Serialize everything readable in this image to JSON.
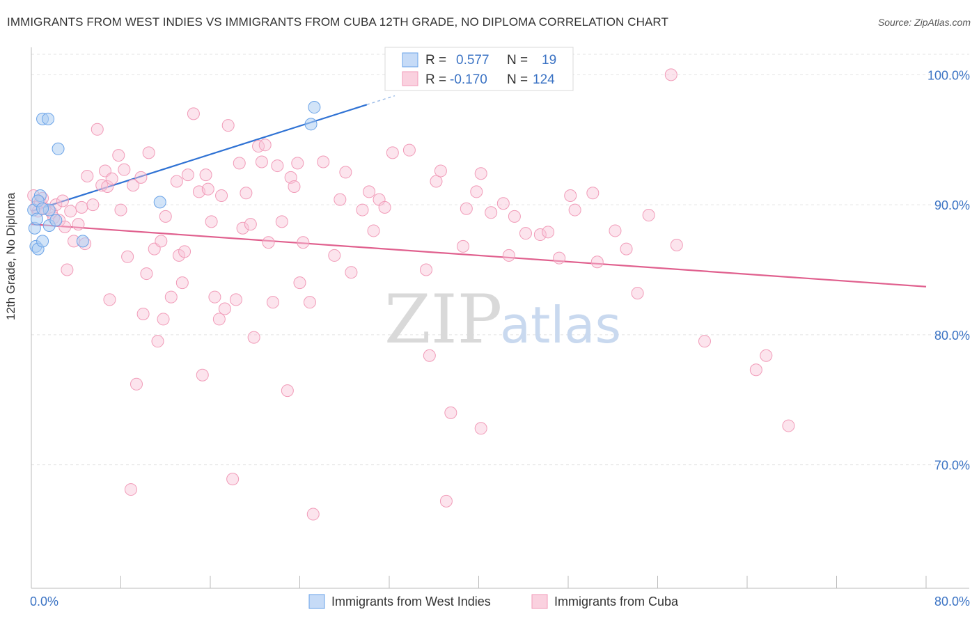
{
  "header": {
    "title": "IMMIGRANTS FROM WEST INDIES VS IMMIGRANTS FROM CUBA 12TH GRADE, NO DIPLOMA CORRELATION CHART",
    "source": "Source: ZipAtlas.com"
  },
  "watermark": {
    "part1": "ZIP",
    "part2": "atlas"
  },
  "legend_box": {
    "rows": [
      {
        "r_label": "R =",
        "r_value": "0.577",
        "n_label": "N =",
        "n_value": "19"
      },
      {
        "r_label": "R =",
        "r_value": "-0.170",
        "n_label": "N =",
        "n_value": "124"
      }
    ]
  },
  "chart_data": {
    "type": "scatter",
    "title": "IMMIGRANTS FROM WEST INDIES VS IMMIGRANTS FROM CUBA 12TH GRADE, NO DIPLOMA CORRELATION CHART",
    "ylabel": "12th Grade, No Diploma",
    "xlabel": "",
    "xlim": [
      0,
      80
    ],
    "ylim": [
      60.5,
      102
    ],
    "x_tick_labels": [
      "0.0%",
      "80.0%"
    ],
    "y_ticks": [
      {
        "value": 100,
        "label": "100.0%"
      },
      {
        "value": 90,
        "label": "90.0%"
      },
      {
        "value": 80,
        "label": "80.0%"
      },
      {
        "value": 70,
        "label": "70.0%"
      }
    ],
    "grid": true,
    "legend_position": "bottom",
    "colors": {
      "west_indies": "#6aa3e8",
      "cuba": "#f19bb8",
      "west_indies_line": "#2f72d4",
      "cuba_line": "#e0608e",
      "tick_label": "#3b73c4"
    },
    "series": [
      {
        "name": "Immigrants from West Indies",
        "R": 0.577,
        "N": 19,
        "trend": {
          "x": [
            0.0,
            30.0
          ],
          "y": [
            89.5,
            97.7
          ]
        },
        "points": [
          [
            0.2,
            89.6
          ],
          [
            0.3,
            88.2
          ],
          [
            0.4,
            86.8
          ],
          [
            0.5,
            88.9
          ],
          [
            0.6,
            86.6
          ],
          [
            0.8,
            90.7
          ],
          [
            1.0,
            87.2
          ],
          [
            1.0,
            96.6
          ],
          [
            1.5,
            96.6
          ],
          [
            1.6,
            89.6
          ],
          [
            1.6,
            88.4
          ],
          [
            2.2,
            88.8
          ],
          [
            2.4,
            94.3
          ],
          [
            4.6,
            87.2
          ],
          [
            11.5,
            90.2
          ],
          [
            25.0,
            96.2
          ],
          [
            25.3,
            97.5
          ],
          [
            0.6,
            90.3
          ],
          [
            1.0,
            89.7
          ]
        ]
      },
      {
        "name": "Immigrants from Cuba",
        "R": -0.17,
        "N": 124,
        "trend": {
          "x": [
            0.0,
            80.0
          ],
          "y": [
            88.5,
            83.7
          ]
        },
        "points": [
          [
            0.2,
            90.7
          ],
          [
            0.4,
            89.8
          ],
          [
            0.8,
            90.2
          ],
          [
            1.0,
            90.5
          ],
          [
            1.2,
            89.7
          ],
          [
            1.8,
            89.4
          ],
          [
            2.0,
            89.0
          ],
          [
            2.2,
            90.0
          ],
          [
            2.5,
            88.8
          ],
          [
            2.8,
            90.3
          ],
          [
            3.0,
            88.3
          ],
          [
            3.2,
            85.0
          ],
          [
            3.5,
            89.5
          ],
          [
            3.8,
            87.2
          ],
          [
            4.2,
            88.5
          ],
          [
            4.5,
            89.8
          ],
          [
            4.8,
            87.0
          ],
          [
            5.0,
            92.2
          ],
          [
            5.5,
            90.0
          ],
          [
            5.9,
            95.8
          ],
          [
            6.3,
            91.5
          ],
          [
            6.6,
            92.6
          ],
          [
            6.8,
            91.4
          ],
          [
            7.0,
            82.7
          ],
          [
            7.2,
            92.0
          ],
          [
            7.8,
            93.8
          ],
          [
            8.0,
            89.6
          ],
          [
            8.3,
            92.7
          ],
          [
            8.6,
            86.0
          ],
          [
            8.9,
            68.1
          ],
          [
            9.1,
            91.5
          ],
          [
            9.4,
            76.2
          ],
          [
            9.8,
            92.1
          ],
          [
            10.0,
            81.6
          ],
          [
            10.3,
            84.7
          ],
          [
            10.5,
            94.0
          ],
          [
            11.0,
            86.6
          ],
          [
            11.3,
            79.5
          ],
          [
            11.6,
            87.2
          ],
          [
            11.8,
            81.2
          ],
          [
            12.0,
            89.1
          ],
          [
            12.5,
            82.9
          ],
          [
            13.0,
            91.8
          ],
          [
            13.2,
            86.1
          ],
          [
            13.5,
            84.0
          ],
          [
            13.7,
            86.4
          ],
          [
            14.0,
            92.3
          ],
          [
            14.5,
            97.0
          ],
          [
            15.0,
            91.0
          ],
          [
            15.3,
            76.9
          ],
          [
            15.6,
            92.3
          ],
          [
            15.8,
            91.2
          ],
          [
            16.1,
            88.7
          ],
          [
            16.4,
            82.9
          ],
          [
            16.8,
            81.2
          ],
          [
            17.0,
            90.7
          ],
          [
            17.3,
            82.0
          ],
          [
            17.6,
            96.1
          ],
          [
            18.0,
            68.9
          ],
          [
            18.3,
            82.7
          ],
          [
            18.6,
            93.2
          ],
          [
            18.9,
            88.2
          ],
          [
            19.2,
            90.9
          ],
          [
            19.6,
            88.5
          ],
          [
            19.9,
            79.8
          ],
          [
            20.3,
            94.5
          ],
          [
            20.6,
            93.3
          ],
          [
            20.9,
            94.6
          ],
          [
            21.2,
            87.1
          ],
          [
            21.6,
            82.5
          ],
          [
            22.0,
            93.0
          ],
          [
            22.4,
            88.7
          ],
          [
            22.9,
            75.7
          ],
          [
            23.2,
            92.1
          ],
          [
            23.5,
            91.4
          ],
          [
            23.8,
            93.2
          ],
          [
            24.0,
            84.0
          ],
          [
            24.3,
            87.1
          ],
          [
            24.9,
            82.5
          ],
          [
            25.2,
            66.2
          ],
          [
            26.1,
            93.3
          ],
          [
            27.1,
            86.1
          ],
          [
            27.6,
            90.4
          ],
          [
            28.1,
            92.5
          ],
          [
            28.6,
            84.8
          ],
          [
            29.6,
            89.6
          ],
          [
            30.2,
            91.0
          ],
          [
            30.6,
            88.0
          ],
          [
            31.1,
            90.4
          ],
          [
            31.6,
            89.8
          ],
          [
            32.3,
            94.0
          ],
          [
            33.8,
            94.2
          ],
          [
            35.3,
            85.0
          ],
          [
            35.6,
            78.4
          ],
          [
            36.2,
            91.8
          ],
          [
            36.6,
            92.6
          ],
          [
            37.1,
            67.2
          ],
          [
            37.5,
            74.0
          ],
          [
            38.6,
            86.8
          ],
          [
            38.9,
            89.7
          ],
          [
            39.8,
            91.0
          ],
          [
            40.2,
            92.4
          ],
          [
            40.2,
            72.8
          ],
          [
            41.1,
            89.4
          ],
          [
            42.2,
            90.1
          ],
          [
            42.7,
            86.1
          ],
          [
            43.2,
            89.1
          ],
          [
            44.2,
            87.8
          ],
          [
            45.5,
            87.7
          ],
          [
            46.2,
            87.9
          ],
          [
            47.2,
            85.9
          ],
          [
            48.2,
            90.7
          ],
          [
            48.6,
            89.6
          ],
          [
            50.2,
            90.9
          ],
          [
            50.6,
            85.6
          ],
          [
            52.2,
            88.0
          ],
          [
            53.2,
            86.6
          ],
          [
            54.2,
            83.2
          ],
          [
            55.2,
            89.2
          ],
          [
            57.2,
            100.0
          ],
          [
            57.7,
            86.9
          ],
          [
            60.2,
            79.5
          ],
          [
            64.8,
            77.3
          ],
          [
            65.7,
            78.4
          ],
          [
            67.7,
            73.0
          ],
          [
            0.6,
            89.5
          ]
        ]
      }
    ]
  }
}
